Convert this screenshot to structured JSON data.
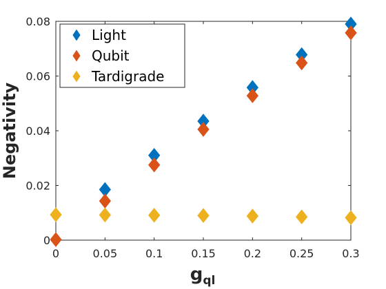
{
  "chart_data": {
    "type": "scatter",
    "title": "",
    "xlabel": "g",
    "xlabel_subscript": "ql",
    "ylabel": "Negativity",
    "xlim": [
      0,
      0.3
    ],
    "ylim": [
      0,
      0.08
    ],
    "xticks": [
      "0",
      "0.05",
      "0.1",
      "0.15",
      "0.2",
      "0.25",
      "0.3"
    ],
    "yticks": [
      "0",
      "0.02",
      "0.04",
      "0.06",
      "0.08"
    ],
    "grid": false,
    "legend_position": "top-left",
    "series": [
      {
        "name": "Light",
        "color": "#0072BD",
        "marker": "diamond",
        "x": [
          0.05,
          0.1,
          0.15,
          0.2,
          0.25,
          0.3
        ],
        "y": [
          0.0185,
          0.031,
          0.0435,
          0.0558,
          0.0678,
          0.079
        ]
      },
      {
        "name": "Qubit",
        "color": "#D95319",
        "marker": "diamond",
        "x": [
          0,
          0.05,
          0.1,
          0.15,
          0.2,
          0.25,
          0.3
        ],
        "y": [
          0.0002,
          0.0143,
          0.0275,
          0.0405,
          0.0528,
          0.0648,
          0.0758
        ]
      },
      {
        "name": "Tardigrade",
        "color": "#EDB120",
        "marker": "diamond",
        "x": [
          0,
          0.05,
          0.1,
          0.15,
          0.2,
          0.25,
          0.3
        ],
        "y": [
          0.0093,
          0.0092,
          0.0091,
          0.009,
          0.0088,
          0.0085,
          0.0082
        ]
      }
    ]
  }
}
